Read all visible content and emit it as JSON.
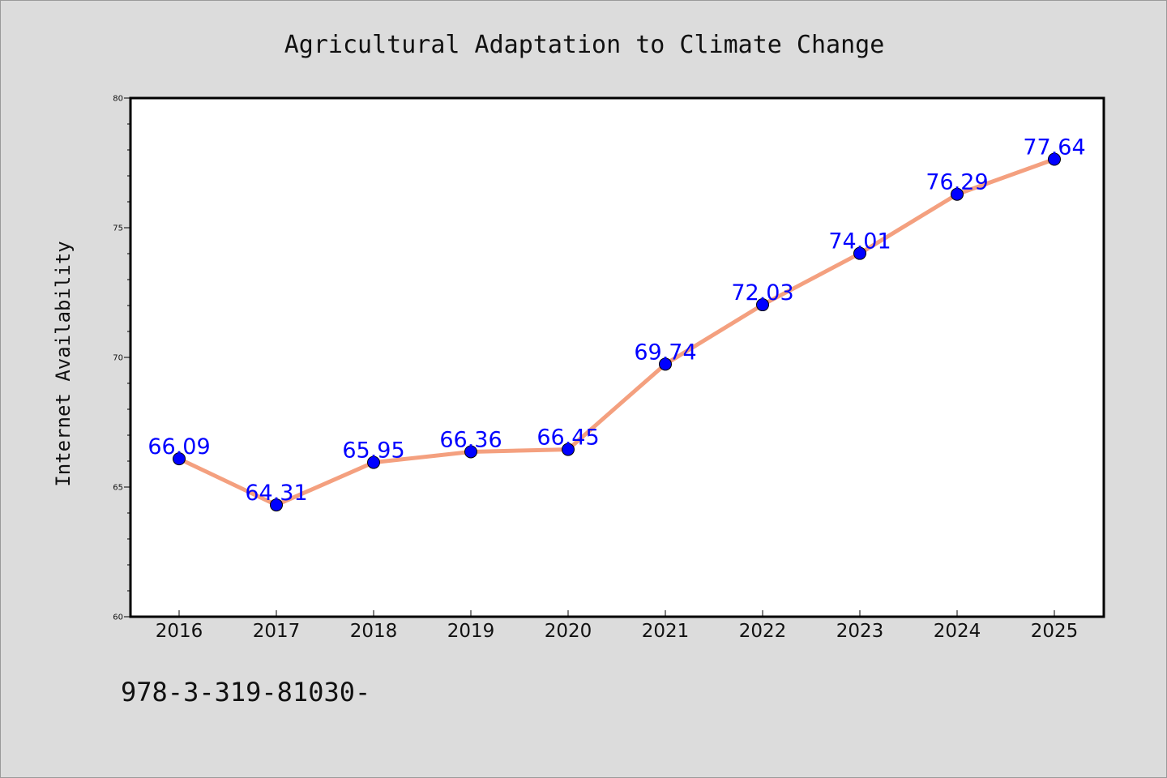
{
  "chart_data": {
    "type": "line",
    "title": "Agricultural Adaptation to Climate Change",
    "xlabel": "",
    "ylabel": "Internet Availability",
    "x": [
      "2016",
      "2017",
      "2018",
      "2019",
      "2020",
      "2021",
      "2022",
      "2023",
      "2024",
      "2025"
    ],
    "series": [
      {
        "values": [
          66.09,
          64.31,
          65.95,
          66.36,
          66.45,
          69.74,
          72.03,
          74.01,
          76.29,
          77.64
        ]
      }
    ],
    "data_labels": [
      "66.09",
      "64.31",
      "65.95",
      "66.36",
      "66.45",
      "69.74",
      "72.03",
      "74.01",
      "76.29",
      "77.64"
    ],
    "ylim": [
      60,
      80
    ],
    "yticks": [
      "60",
      "65",
      "70",
      "75",
      "80"
    ],
    "grid": false,
    "legend": "none"
  },
  "footer": {
    "text": "978-3-319-81030-"
  },
  "colors": {
    "background": "#dcdcdc",
    "plot_background": "#ffffff",
    "line": "#f4a07f",
    "marker": "#0000ff",
    "data_label": "#0000ff"
  }
}
